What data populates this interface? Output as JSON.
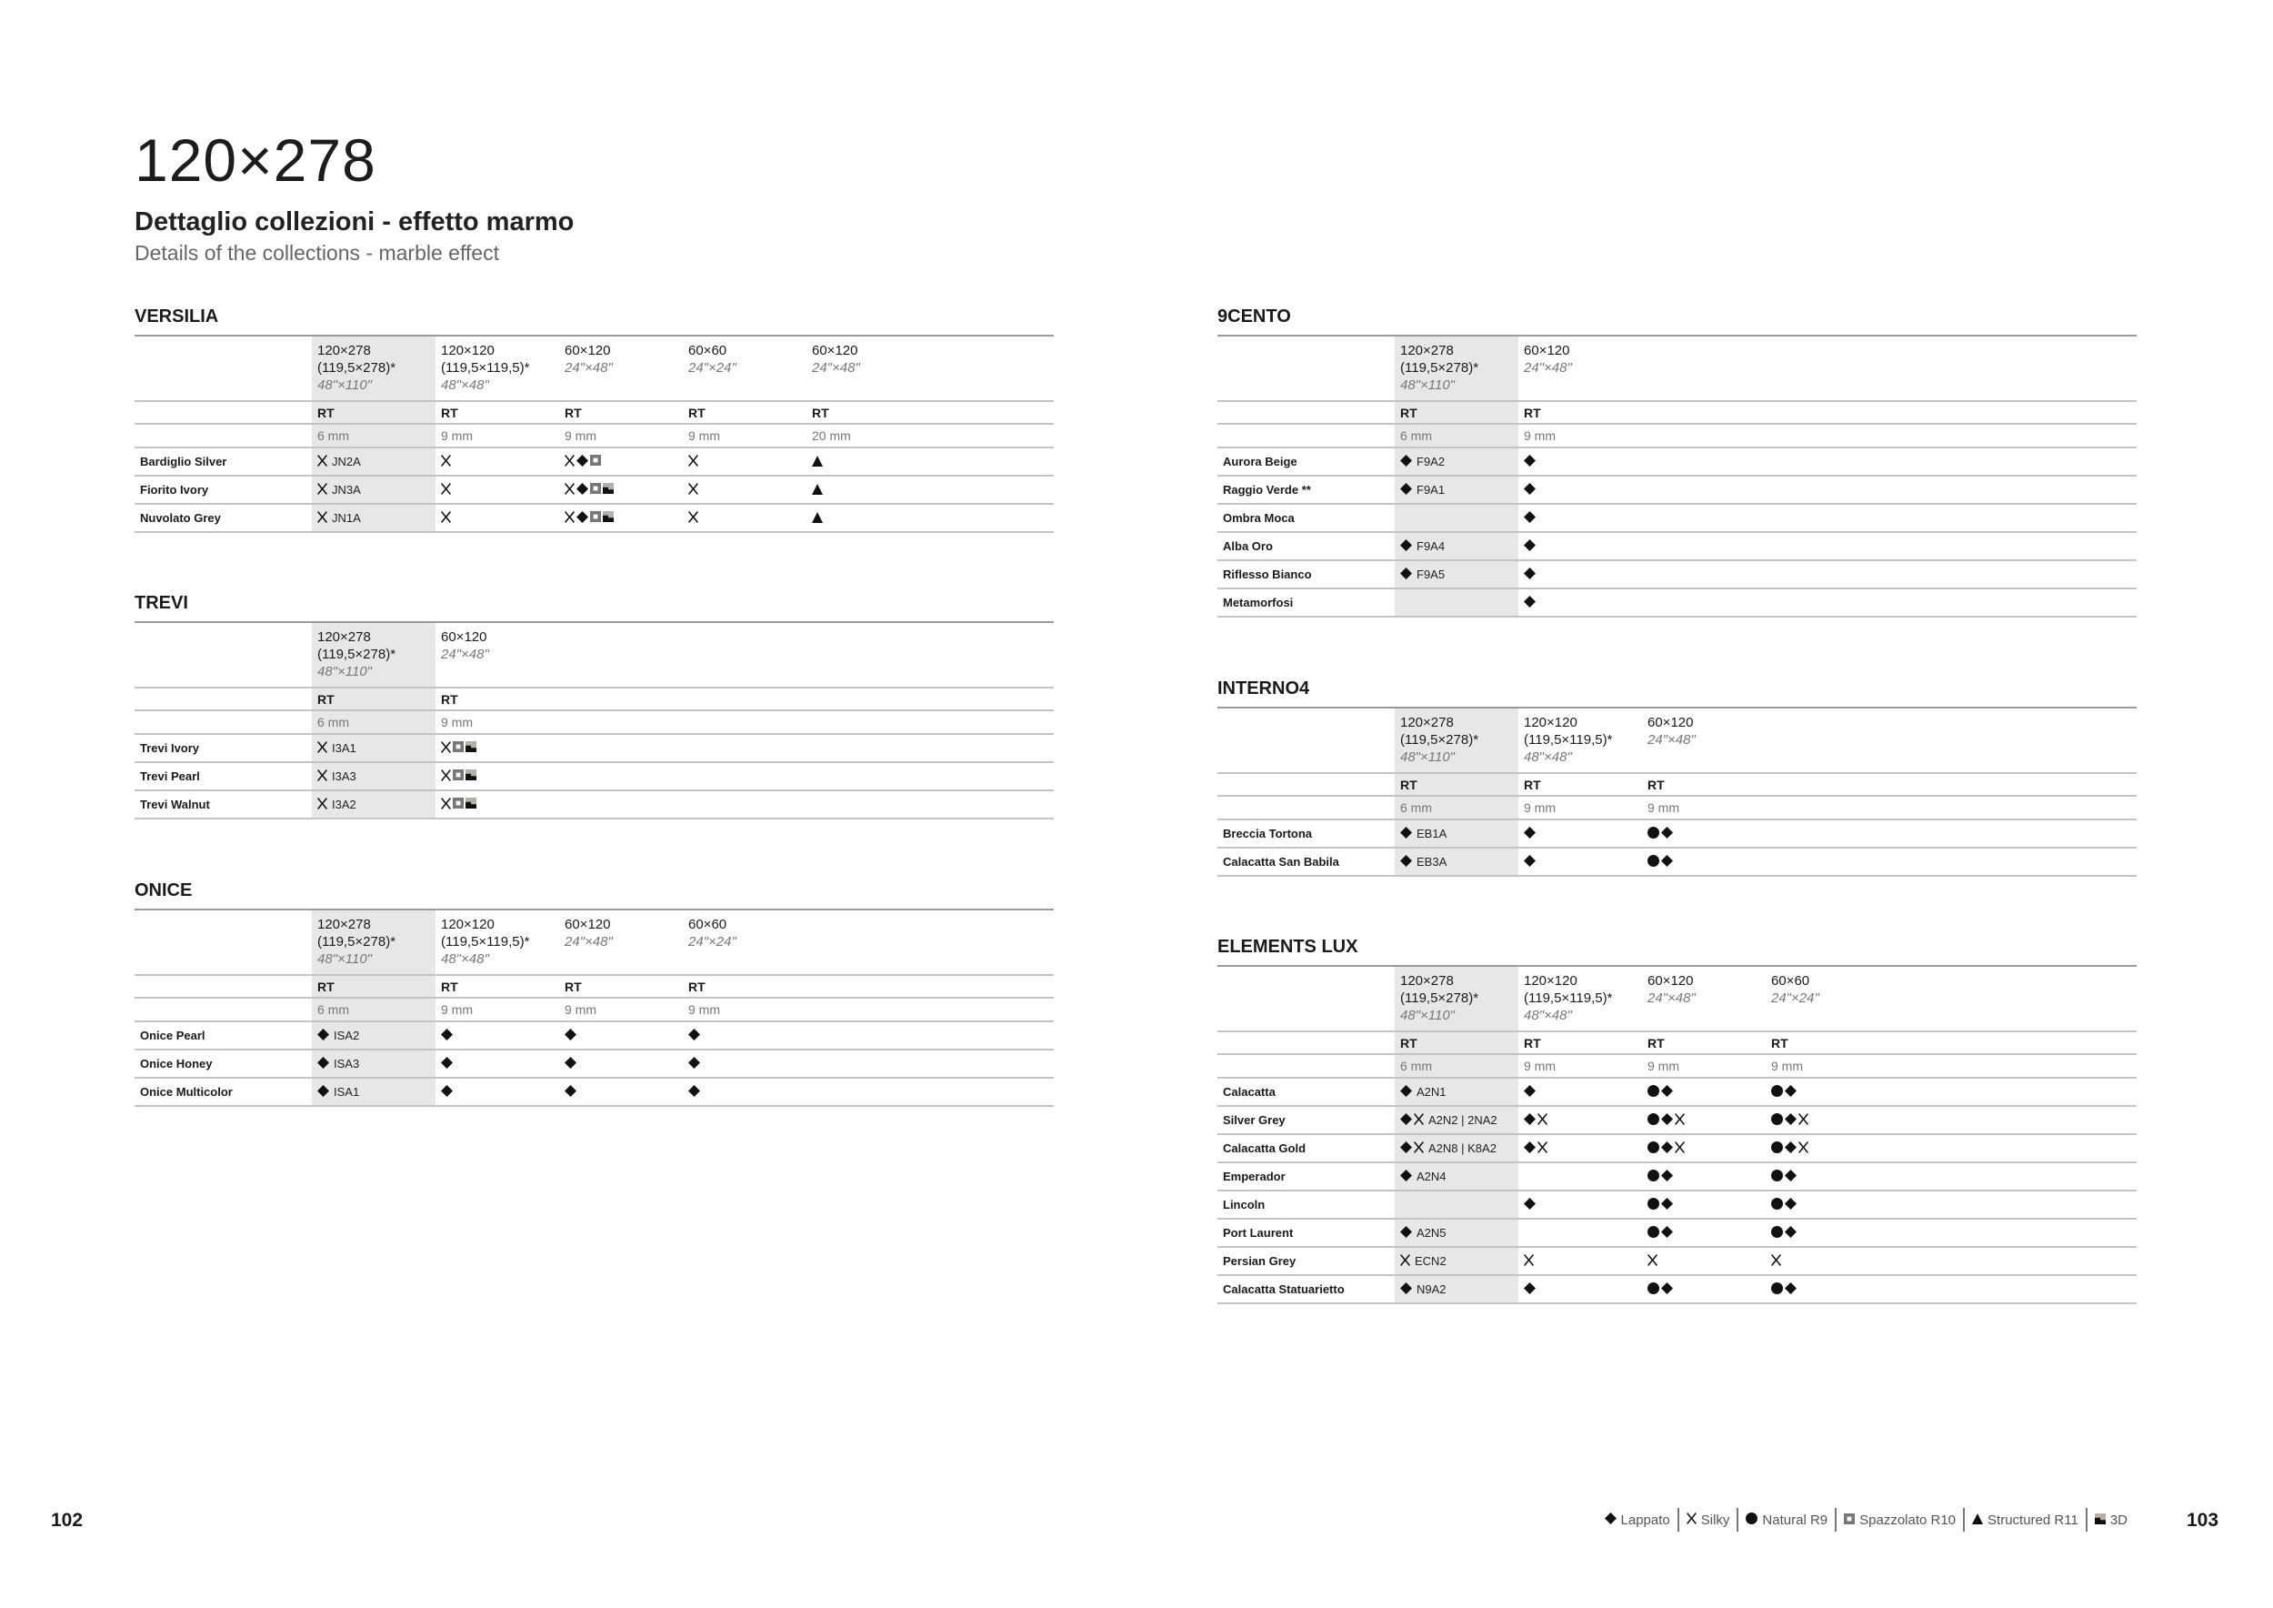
{
  "page": {
    "title": "120×278",
    "subtitle": "Dettaglio collezioni - effetto marmo",
    "subtitle_en": "Details of the collections - marble effect",
    "page_left": "102",
    "page_right": "103"
  },
  "legend": [
    {
      "icon": "lappato",
      "label": "Lappato"
    },
    {
      "icon": "silky",
      "label": "Silky"
    },
    {
      "icon": "natural",
      "label": "Natural R9"
    },
    {
      "icon": "spazzolato",
      "label": "Spazzolato R10"
    },
    {
      "icon": "structured",
      "label": "Structured R11"
    },
    {
      "icon": "3d",
      "label": "3D"
    }
  ],
  "collections": [
    {
      "name": "VERSILIA",
      "sizes": [
        {
          "size": "120×278",
          "sub": "(119,5×278)*",
          "inch": "48\"×110\"",
          "finish": "RT",
          "thickness": "6 mm"
        },
        {
          "size": "120×120",
          "sub": "(119,5×119,5)*",
          "inch": "48\"×48\"",
          "finish": "RT",
          "thickness": "9 mm"
        },
        {
          "size": "60×120",
          "sub": "",
          "inch": "24\"×48\"",
          "finish": "RT",
          "thickness": "9 mm"
        },
        {
          "size": "60×60",
          "sub": "",
          "inch": "24\"×24\"",
          "finish": "RT",
          "thickness": "9 mm"
        },
        {
          "size": "60×120",
          "sub": "",
          "inch": "24\"×48\"",
          "finish": "RT",
          "thickness": "20 mm"
        }
      ],
      "rows": [
        {
          "name": "Bardiglio Silver",
          "cells": [
            {
              "icons": [
                "silky"
              ],
              "code": "JN2A"
            },
            {
              "icons": [
                "silky"
              ]
            },
            {
              "icons": [
                "silky",
                "lappato",
                "spazzolato"
              ]
            },
            {
              "icons": [
                "silky"
              ]
            },
            {
              "icons": [
                "structured"
              ]
            }
          ]
        },
        {
          "name": "Fiorito Ivory",
          "cells": [
            {
              "icons": [
                "silky"
              ],
              "code": "JN3A"
            },
            {
              "icons": [
                "silky"
              ]
            },
            {
              "icons": [
                "silky",
                "lappato",
                "spazzolato",
                "3d"
              ]
            },
            {
              "icons": [
                "silky"
              ]
            },
            {
              "icons": [
                "structured"
              ]
            }
          ]
        },
        {
          "name": "Nuvolato Grey",
          "cells": [
            {
              "icons": [
                "silky"
              ],
              "code": "JN1A"
            },
            {
              "icons": [
                "silky"
              ]
            },
            {
              "icons": [
                "silky",
                "lappato",
                "spazzolato",
                "3d"
              ]
            },
            {
              "icons": [
                "silky"
              ]
            },
            {
              "icons": [
                "structured"
              ]
            }
          ]
        }
      ]
    },
    {
      "name": "TREVI",
      "sizes": [
        {
          "size": "120×278",
          "sub": "(119,5×278)*",
          "inch": "48\"×110\"",
          "finish": "RT",
          "thickness": "6 mm"
        },
        {
          "size": "60×120",
          "sub": "",
          "inch": "24\"×48\"",
          "finish": "RT",
          "thickness": "9 mm"
        }
      ],
      "rows": [
        {
          "name": "Trevi Ivory",
          "cells": [
            {
              "icons": [
                "silky"
              ],
              "code": "I3A1"
            },
            {
              "icons": [
                "silky",
                "spazzolato",
                "3d"
              ]
            }
          ]
        },
        {
          "name": "Trevi Pearl",
          "cells": [
            {
              "icons": [
                "silky"
              ],
              "code": "I3A3"
            },
            {
              "icons": [
                "silky",
                "spazzolato",
                "3d"
              ]
            }
          ]
        },
        {
          "name": "Trevi Walnut",
          "cells": [
            {
              "icons": [
                "silky"
              ],
              "code": "I3A2"
            },
            {
              "icons": [
                "silky",
                "spazzolato",
                "3d"
              ]
            }
          ]
        }
      ]
    },
    {
      "name": "ONICE",
      "sizes": [
        {
          "size": "120×278",
          "sub": "(119,5×278)*",
          "inch": "48\"×110\"",
          "finish": "RT",
          "thickness": "6 mm"
        },
        {
          "size": "120×120",
          "sub": "(119,5×119,5)*",
          "inch": "48\"×48\"",
          "finish": "RT",
          "thickness": "9 mm"
        },
        {
          "size": "60×120",
          "sub": "",
          "inch": "24\"×48\"",
          "finish": "RT",
          "thickness": "9 mm"
        },
        {
          "size": "60×60",
          "sub": "",
          "inch": "24\"×24\"",
          "finish": "RT",
          "thickness": "9 mm"
        }
      ],
      "rows": [
        {
          "name": "Onice Pearl",
          "cells": [
            {
              "icons": [
                "lappato"
              ],
              "code": "ISA2"
            },
            {
              "icons": [
                "lappato"
              ]
            },
            {
              "icons": [
                "lappato"
              ]
            },
            {
              "icons": [
                "lappato"
              ]
            }
          ]
        },
        {
          "name": "Onice Honey",
          "cells": [
            {
              "icons": [
                "lappato"
              ],
              "code": "ISA3"
            },
            {
              "icons": [
                "lappato"
              ]
            },
            {
              "icons": [
                "lappato"
              ]
            },
            {
              "icons": [
                "lappato"
              ]
            }
          ]
        },
        {
          "name": "Onice Multicolor",
          "cells": [
            {
              "icons": [
                "lappato"
              ],
              "code": "ISA1"
            },
            {
              "icons": [
                "lappato"
              ]
            },
            {
              "icons": [
                "lappato"
              ]
            },
            {
              "icons": [
                "lappato"
              ]
            }
          ]
        }
      ]
    },
    {
      "name": "9CENTO",
      "sizes": [
        {
          "size": "120×278",
          "sub": "(119,5×278)*",
          "inch": "48\"×110\"",
          "finish": "RT",
          "thickness": "6 mm"
        },
        {
          "size": "60×120",
          "sub": "",
          "inch": "24\"×48\"",
          "finish": "RT",
          "thickness": "9 mm"
        }
      ],
      "rows": [
        {
          "name": "Aurora Beige",
          "cells": [
            {
              "icons": [
                "lappato"
              ],
              "code": "F9A2"
            },
            {
              "icons": [
                "lappato"
              ]
            }
          ]
        },
        {
          "name": "Raggio Verde **",
          "cells": [
            {
              "icons": [
                "lappato"
              ],
              "code": "F9A1"
            },
            {
              "icons": [
                "lappato"
              ]
            }
          ]
        },
        {
          "name": "Ombra Moca",
          "cells": [
            {
              "icons": []
            },
            {
              "icons": [
                "lappato"
              ]
            }
          ]
        },
        {
          "name": "Alba Oro",
          "cells": [
            {
              "icons": [
                "lappato"
              ],
              "code": "F9A4"
            },
            {
              "icons": [
                "lappato"
              ]
            }
          ]
        },
        {
          "name": "Riflesso Bianco",
          "cells": [
            {
              "icons": [
                "lappato"
              ],
              "code": "F9A5"
            },
            {
              "icons": [
                "lappato"
              ]
            }
          ]
        },
        {
          "name": "Metamorfosi",
          "cells": [
            {
              "icons": []
            },
            {
              "icons": [
                "lappato"
              ]
            }
          ]
        }
      ]
    },
    {
      "name": "INTERNO4",
      "sizes": [
        {
          "size": "120×278",
          "sub": "(119,5×278)*",
          "inch": "48\"×110\"",
          "finish": "RT",
          "thickness": "6 mm"
        },
        {
          "size": "120×120",
          "sub": "(119,5×119,5)*",
          "inch": "48\"×48\"",
          "finish": "RT",
          "thickness": "9 mm"
        },
        {
          "size": "60×120",
          "sub": "",
          "inch": "24\"×48\"",
          "finish": "RT",
          "thickness": "9 mm"
        }
      ],
      "rows": [
        {
          "name": "Breccia Tortona",
          "cells": [
            {
              "icons": [
                "lappato"
              ],
              "code": "EB1A"
            },
            {
              "icons": [
                "lappato"
              ]
            },
            {
              "icons": [
                "natural",
                "lappato"
              ]
            }
          ]
        },
        {
          "name": "Calacatta San Babila",
          "cells": [
            {
              "icons": [
                "lappato"
              ],
              "code": "EB3A"
            },
            {
              "icons": [
                "lappato"
              ]
            },
            {
              "icons": [
                "natural",
                "lappato"
              ]
            }
          ]
        }
      ]
    },
    {
      "name": "ELEMENTS LUX",
      "sizes": [
        {
          "size": "120×278",
          "sub": "(119,5×278)*",
          "inch": "48\"×110\"",
          "finish": "RT",
          "thickness": "6 mm"
        },
        {
          "size": "120×120",
          "sub": "(119,5×119,5)*",
          "inch": "48\"×48\"",
          "finish": "RT",
          "thickness": "9 mm"
        },
        {
          "size": "60×120",
          "sub": "",
          "inch": "24\"×48\"",
          "finish": "RT",
          "thickness": "9 mm"
        },
        {
          "size": "60×60",
          "sub": "",
          "inch": "24\"×24\"",
          "finish": "RT",
          "thickness": "9 mm"
        }
      ],
      "rows": [
        {
          "name": "Calacatta",
          "cells": [
            {
              "icons": [
                "lappato"
              ],
              "code": "A2N1"
            },
            {
              "icons": [
                "lappato"
              ]
            },
            {
              "icons": [
                "natural",
                "lappato"
              ]
            },
            {
              "icons": [
                "natural",
                "lappato"
              ]
            }
          ]
        },
        {
          "name": "Silver Grey",
          "cells": [
            {
              "icons": [
                "lappato",
                "silky"
              ],
              "code": "A2N2 | 2NA2"
            },
            {
              "icons": [
                "lappato",
                "silky"
              ]
            },
            {
              "icons": [
                "natural",
                "lappato",
                "silky"
              ]
            },
            {
              "icons": [
                "natural",
                "lappato",
                "silky"
              ]
            }
          ]
        },
        {
          "name": "Calacatta Gold",
          "cells": [
            {
              "icons": [
                "lappato",
                "silky"
              ],
              "code": "A2N8 | K8A2"
            },
            {
              "icons": [
                "lappato",
                "silky"
              ]
            },
            {
              "icons": [
                "natural",
                "lappato",
                "silky"
              ]
            },
            {
              "icons": [
                "natural",
                "lappato",
                "silky"
              ]
            }
          ]
        },
        {
          "name": "Emperador",
          "cells": [
            {
              "icons": [
                "lappato"
              ],
              "code": "A2N4"
            },
            {
              "icons": []
            },
            {
              "icons": [
                "natural",
                "lappato"
              ]
            },
            {
              "icons": [
                "natural",
                "lappato"
              ]
            }
          ]
        },
        {
          "name": "Lincoln",
          "cells": [
            {
              "icons": []
            },
            {
              "icons": [
                "lappato"
              ]
            },
            {
              "icons": [
                "natural",
                "lappato"
              ]
            },
            {
              "icons": [
                "natural",
                "lappato"
              ]
            }
          ]
        },
        {
          "name": "Port Laurent",
          "cells": [
            {
              "icons": [
                "lappato"
              ],
              "code": "A2N5"
            },
            {
              "icons": []
            },
            {
              "icons": [
                "natural",
                "lappato"
              ]
            },
            {
              "icons": [
                "natural",
                "lappato"
              ]
            }
          ]
        },
        {
          "name": "Persian Grey",
          "cells": [
            {
              "icons": [
                "silky"
              ],
              "code": "ECN2"
            },
            {
              "icons": [
                "silky"
              ]
            },
            {
              "icons": [
                "silky"
              ]
            },
            {
              "icons": [
                "silky"
              ]
            }
          ]
        },
        {
          "name": "Calacatta Statuarietto",
          "cells": [
            {
              "icons": [
                "lappato"
              ],
              "code": "N9A2"
            },
            {
              "icons": [
                "lappato"
              ]
            },
            {
              "icons": [
                "natural",
                "lappato"
              ]
            },
            {
              "icons": [
                "natural",
                "lappato"
              ]
            }
          ]
        }
      ]
    }
  ]
}
